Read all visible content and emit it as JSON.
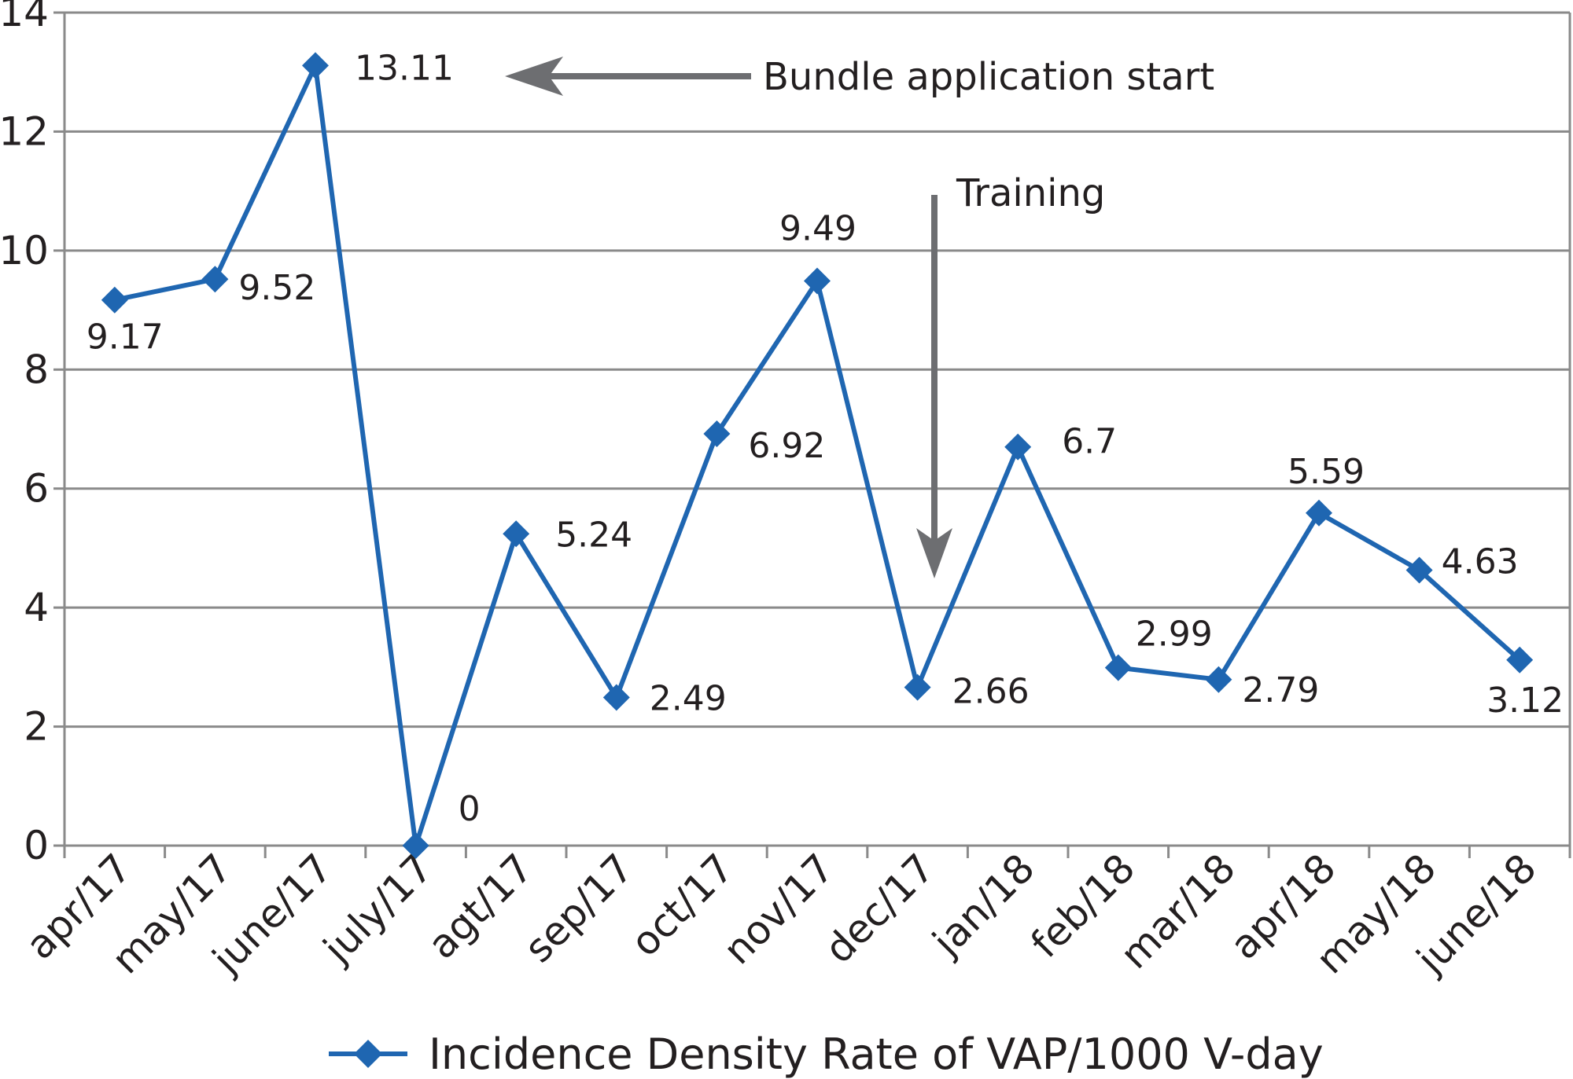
{
  "chart_data": {
    "type": "line",
    "title": "",
    "xlabel": "",
    "ylabel": "",
    "categories": [
      "apr/17",
      "may/17",
      "june/17",
      "july/17",
      "agt/17",
      "sep/17",
      "oct/17",
      "nov/17",
      "dec/17",
      "jan/18",
      "feb/18",
      "mar/18",
      "apr/18",
      "may/18",
      "june/18"
    ],
    "series": [
      {
        "name": "Incidence Density Rate of VAP/1000 V-day",
        "values": [
          9.17,
          9.52,
          13.11,
          0,
          5.24,
          2.49,
          6.92,
          9.49,
          2.66,
          6.7,
          2.99,
          2.79,
          5.59,
          4.63,
          3.12
        ],
        "data_labels": [
          "9.17",
          "9.52",
          "13.11",
          "0",
          "5.24",
          "2.49",
          "6.92",
          "9.49",
          "2.66",
          "6.7",
          "2.99",
          "2.79",
          "5.59",
          "4.63",
          "3.12"
        ],
        "color": "#1f66b1",
        "marker": "diamond"
      }
    ],
    "ylim": [
      0,
      14
    ],
    "yticks": [
      0,
      2,
      4,
      6,
      8,
      10,
      12,
      14
    ],
    "ytick_labels": [
      "0",
      "2",
      "4",
      "6",
      "8",
      "10",
      "12",
      "14"
    ],
    "grid": true,
    "legend": "bottom-center",
    "annotations": [
      {
        "text": "Bundle application start",
        "target_index": 2,
        "arrow": "left",
        "color": "#6d6e71"
      },
      {
        "text": "Training",
        "target_index": 8,
        "arrow": "down",
        "color": "#6d6e71"
      }
    ],
    "colors": {
      "grid": "#8a8a8a",
      "axis": "#8a8a8a",
      "arrow": "#6d6e71",
      "series": "#1f66b1",
      "text": "#231f20"
    }
  }
}
